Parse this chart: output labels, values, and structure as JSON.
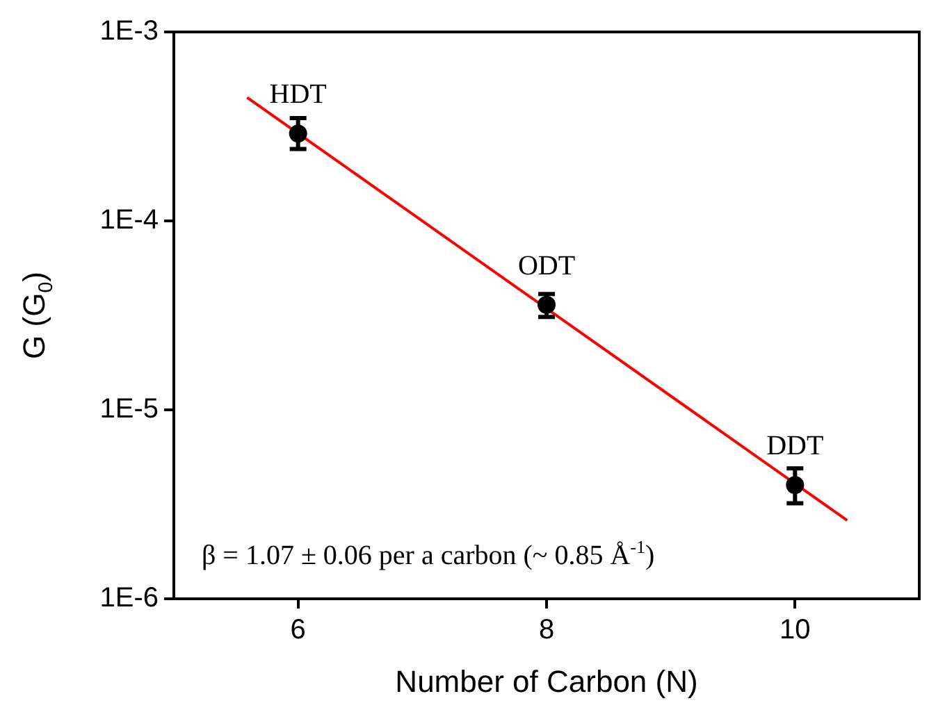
{
  "chart_data": {
    "type": "scatter",
    "xlabel": "Number of Carbon (N)",
    "ylabel": "G (G$_{0}$)",
    "x": [
      6,
      8,
      10
    ],
    "series": [
      {
        "color": "#000000",
        "marker": "circle",
        "values": [
          0.00029,
          3.6e-05,
          4e-06
        ],
        "errors": [
          [
            0.00024,
            0.00035
          ],
          [
            3.1e-05,
            4.1e-05
          ],
          [
            3.2e-06,
            4.9e-06
          ]
        ]
      },
      {
        "type": "line",
        "color": "#ff0000",
        "marker": "none",
        "line_style": "solid",
        "x": [
          5.59,
          10.42
        ],
        "values": [
          0.00045,
          2.6e-06
        ]
      }
    ],
    "log": "y",
    "xlim": [
      5,
      11
    ],
    "xticks": [
      6,
      8,
      10
    ],
    "ylim": [
      1e-06,
      0.001
    ],
    "yticks": [
      {
        "value": 1e-06,
        "label": "1E-6"
      },
      {
        "value": 1e-05,
        "label": "1E-5"
      },
      {
        "value": 0.0001,
        "label": "1E-4"
      },
      {
        "value": 0.001,
        "label": "1E-3"
      }
    ],
    "grid": false,
    "legend": false,
    "annotations": [
      {
        "text": "HDT",
        "x": 6,
        "y": 0.00029
      },
      {
        "text": "ODT",
        "x": 8,
        "y": 3.6e-05
      },
      {
        "text": "DDT",
        "x": 10,
        "y": 4e-06
      },
      "β = 1.07 ± 0.06 per a carbon (~ 0.85 Å$^{-1}$)"
    ]
  }
}
